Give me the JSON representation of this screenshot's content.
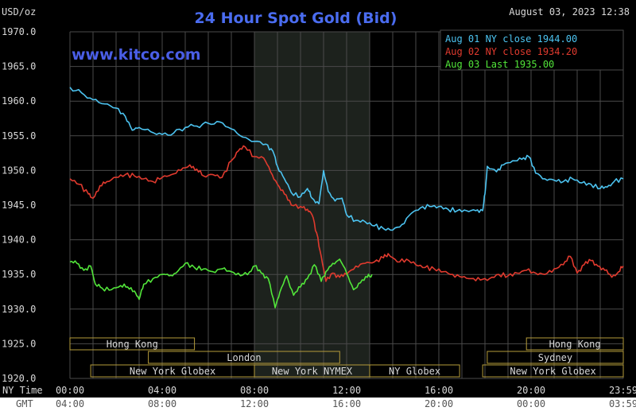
{
  "colors": {
    "background": "#000000",
    "grid": "#4a4a4a",
    "night_band": "#1d221d",
    "aug01": "#4cc3f0",
    "aug02": "#e03a2e",
    "aug03": "#52e63a",
    "title": "#4a6cf0",
    "watermark": "#4a5ee6",
    "session_box": "#b59b3a",
    "session_text": "#d8d8d8"
  },
  "header": {
    "unit": "USD/oz",
    "title": "24 Hour Spot Gold (Bid)",
    "datetime": "August 03, 2023 12:38",
    "watermark": "www.kitco.com"
  },
  "legend": {
    "aug01": "Aug 01 NY close 1944.00",
    "aug02": "Aug 02 NY close 1934.20",
    "aug03": "Aug 03 Last 1935.00"
  },
  "axis": {
    "ny_time_label": "NY Time",
    "gmt_label": "GMT"
  },
  "chart_data": {
    "type": "line",
    "title": "24 Hour Spot Gold (Bid)",
    "ylabel": "USD/oz",
    "ylim": [
      1920,
      1970
    ],
    "xlim": [
      0,
      24
    ],
    "grid": true,
    "legend_position": "top-right",
    "y_ticks": [
      "1970.0",
      "1965.0",
      "1960.0",
      "1955.0",
      "1950.0",
      "1945.0",
      "1940.0",
      "1935.0",
      "1930.0",
      "1925.0",
      "1920.0"
    ],
    "x_ticks_ny": [
      {
        "h": 0,
        "label": "00:00"
      },
      {
        "h": 4,
        "label": "04:00"
      },
      {
        "h": 8,
        "label": "08:00"
      },
      {
        "h": 12,
        "label": "12:00"
      },
      {
        "h": 16,
        "label": "16:00"
      },
      {
        "h": 20,
        "label": "20:00"
      },
      {
        "h": 24,
        "label": "23:59"
      }
    ],
    "x_ticks_gmt": [
      {
        "h": 0,
        "label": "04:00"
      },
      {
        "h": 4,
        "label": "08:00"
      },
      {
        "h": 8,
        "label": "12:00"
      },
      {
        "h": 12,
        "label": "16:00"
      },
      {
        "h": 16,
        "label": "20:00"
      },
      {
        "h": 20,
        "label": "00:00"
      },
      {
        "h": 24,
        "label": "03:59"
      }
    ],
    "night_band": [
      8.0,
      13.0
    ],
    "sessions": [
      {
        "label": "Hong Kong",
        "start": 0,
        "end": 5.4,
        "row": 0
      },
      {
        "label": "Hong Kong",
        "start": 19.8,
        "end": 24,
        "row": 0
      },
      {
        "label": "London",
        "start": 3.4,
        "end": 11.7,
        "row": 1
      },
      {
        "label": "Sydney",
        "start": 18.1,
        "end": 24,
        "row": 1
      },
      {
        "label": "New York Globex",
        "start": 0.9,
        "end": 8.0,
        "row": 2
      },
      {
        "label": "New York NYMEX",
        "start": 8.0,
        "end": 13.0,
        "row": 2
      },
      {
        "label": "NY Globex",
        "start": 13.0,
        "end": 16.9,
        "row": 2
      },
      {
        "label": "New York Globex",
        "start": 17.9,
        "end": 24,
        "row": 2
      }
    ],
    "series": [
      {
        "name": "Aug 01 NY close 1944.00",
        "key": "aug01",
        "points": [
          [
            0,
            1962.0
          ],
          [
            0.5,
            1961.2
          ],
          [
            1,
            1960.2
          ],
          [
            1.5,
            1959.6
          ],
          [
            2,
            1959.0
          ],
          [
            2.4,
            1957.8
          ],
          [
            2.7,
            1955.8
          ],
          [
            3,
            1956.2
          ],
          [
            3.5,
            1955.6
          ],
          [
            4,
            1955.2
          ],
          [
            4.5,
            1955.4
          ],
          [
            5,
            1956.2
          ],
          [
            5.5,
            1956.4
          ],
          [
            6,
            1956.8
          ],
          [
            6.5,
            1957.0
          ],
          [
            7,
            1956.0
          ],
          [
            7.5,
            1954.8
          ],
          [
            8,
            1954.2
          ],
          [
            8.5,
            1953.8
          ],
          [
            8.8,
            1952.8
          ],
          [
            9.0,
            1950.6
          ],
          [
            9.3,
            1948.8
          ],
          [
            9.6,
            1946.8
          ],
          [
            10,
            1946.2
          ],
          [
            10.3,
            1947.4
          ],
          [
            10.5,
            1946.0
          ],
          [
            10.8,
            1945.2
          ],
          [
            11.0,
            1950.0
          ],
          [
            11.2,
            1947.0
          ],
          [
            11.5,
            1945.6
          ],
          [
            11.8,
            1946.0
          ],
          [
            12.0,
            1943.6
          ],
          [
            12.4,
            1942.8
          ],
          [
            12.8,
            1942.6
          ],
          [
            13.2,
            1942.0
          ],
          [
            13.6,
            1941.6
          ],
          [
            14,
            1941.4
          ],
          [
            14.4,
            1942.2
          ],
          [
            14.8,
            1943.8
          ],
          [
            15.2,
            1944.6
          ],
          [
            15.6,
            1944.8
          ],
          [
            16,
            1944.8
          ],
          [
            16.4,
            1944.4
          ],
          [
            16.8,
            1944.2
          ],
          [
            17.2,
            1944.2
          ],
          [
            17.6,
            1944.2
          ],
          [
            17.9,
            1944.2
          ],
          [
            18.0,
            1946.6
          ],
          [
            18.1,
            1950.6
          ],
          [
            18.5,
            1949.8
          ],
          [
            18.8,
            1950.8
          ],
          [
            19.2,
            1951.4
          ],
          [
            19.6,
            1951.6
          ],
          [
            19.9,
            1952.0
          ],
          [
            20.2,
            1949.6
          ],
          [
            20.6,
            1948.8
          ],
          [
            21,
            1948.6
          ],
          [
            21.4,
            1948.4
          ],
          [
            21.8,
            1948.8
          ],
          [
            22.2,
            1948.2
          ],
          [
            22.6,
            1948.0
          ],
          [
            23,
            1947.4
          ],
          [
            23.3,
            1947.6
          ],
          [
            23.6,
            1948.4
          ],
          [
            24,
            1948.8
          ]
        ]
      },
      {
        "name": "Aug 02 NY close 1934.20",
        "key": "aug02",
        "points": [
          [
            0,
            1948.8
          ],
          [
            0.4,
            1948.0
          ],
          [
            0.8,
            1946.6
          ],
          [
            1.0,
            1946.0
          ],
          [
            1.3,
            1947.8
          ],
          [
            1.6,
            1948.4
          ],
          [
            2,
            1949.0
          ],
          [
            2.4,
            1949.4
          ],
          [
            2.8,
            1949.2
          ],
          [
            3.2,
            1948.8
          ],
          [
            3.6,
            1948.4
          ],
          [
            4,
            1949.0
          ],
          [
            4.4,
            1949.4
          ],
          [
            4.8,
            1950.0
          ],
          [
            5.2,
            1950.8
          ],
          [
            5.5,
            1950.2
          ],
          [
            5.8,
            1949.2
          ],
          [
            6.2,
            1949.4
          ],
          [
            6.6,
            1949.0
          ],
          [
            7,
            1951.4
          ],
          [
            7.3,
            1952.8
          ],
          [
            7.6,
            1953.4
          ],
          [
            8,
            1952.0
          ],
          [
            8.4,
            1951.8
          ],
          [
            8.7,
            1949.8
          ],
          [
            9.0,
            1948.0
          ],
          [
            9.3,
            1946.6
          ],
          [
            9.6,
            1945.0
          ],
          [
            10,
            1944.8
          ],
          [
            10.3,
            1944.4
          ],
          [
            10.5,
            1943.6
          ],
          [
            10.7,
            1941.0
          ],
          [
            10.9,
            1937.6
          ],
          [
            11.1,
            1934.0
          ],
          [
            11.4,
            1935.2
          ],
          [
            11.7,
            1934.6
          ],
          [
            12.0,
            1935.0
          ],
          [
            12.4,
            1936.2
          ],
          [
            12.8,
            1936.6
          ],
          [
            13.2,
            1936.8
          ],
          [
            13.6,
            1937.4
          ],
          [
            13.8,
            1938.0
          ],
          [
            14.2,
            1936.8
          ],
          [
            14.6,
            1937.2
          ],
          [
            15,
            1936.4
          ],
          [
            15.4,
            1936.0
          ],
          [
            15.8,
            1935.8
          ],
          [
            16.2,
            1935.4
          ],
          [
            16.6,
            1935.0
          ],
          [
            17,
            1934.6
          ],
          [
            17.4,
            1934.4
          ],
          [
            17.8,
            1934.2
          ],
          [
            18.2,
            1934.4
          ],
          [
            18.6,
            1935.0
          ],
          [
            19,
            1934.8
          ],
          [
            19.4,
            1935.2
          ],
          [
            19.8,
            1935.6
          ],
          [
            20.2,
            1935.2
          ],
          [
            20.6,
            1935.0
          ],
          [
            21,
            1935.8
          ],
          [
            21.4,
            1936.4
          ],
          [
            21.7,
            1937.6
          ],
          [
            22,
            1935.2
          ],
          [
            22.3,
            1936.4
          ],
          [
            22.6,
            1937.0
          ],
          [
            22.9,
            1936.2
          ],
          [
            23.2,
            1935.6
          ],
          [
            23.5,
            1934.6
          ],
          [
            23.8,
            1935.4
          ],
          [
            24,
            1936.2
          ]
        ]
      },
      {
        "name": "Aug 03 Last 1935.00",
        "key": "aug03",
        "points": [
          [
            0,
            1936.8
          ],
          [
            0.3,
            1936.6
          ],
          [
            0.6,
            1935.6
          ],
          [
            0.9,
            1936.2
          ],
          [
            1.1,
            1933.6
          ],
          [
            1.4,
            1933.0
          ],
          [
            1.8,
            1932.8
          ],
          [
            2.2,
            1933.4
          ],
          [
            2.5,
            1933.2
          ],
          [
            2.8,
            1932.6
          ],
          [
            3.0,
            1931.4
          ],
          [
            3.2,
            1933.6
          ],
          [
            3.6,
            1934.4
          ],
          [
            4,
            1935.0
          ],
          [
            4.3,
            1934.8
          ],
          [
            4.6,
            1935.2
          ],
          [
            5.0,
            1936.6
          ],
          [
            5.4,
            1936.0
          ],
          [
            5.8,
            1935.8
          ],
          [
            6.2,
            1935.4
          ],
          [
            6.6,
            1935.8
          ],
          [
            7,
            1935.4
          ],
          [
            7.4,
            1934.8
          ],
          [
            7.8,
            1935.4
          ],
          [
            8,
            1936.2
          ],
          [
            8.3,
            1935.2
          ],
          [
            8.6,
            1934.4
          ],
          [
            8.9,
            1930.2
          ],
          [
            9.1,
            1932.4
          ],
          [
            9.4,
            1934.8
          ],
          [
            9.7,
            1932.0
          ],
          [
            10,
            1933.2
          ],
          [
            10.3,
            1934.4
          ],
          [
            10.6,
            1936.4
          ],
          [
            10.9,
            1934.0
          ],
          [
            11.1,
            1935.4
          ],
          [
            11.4,
            1936.6
          ],
          [
            11.7,
            1937.2
          ],
          [
            12.0,
            1935.2
          ],
          [
            12.3,
            1932.8
          ],
          [
            12.6,
            1933.8
          ],
          [
            12.9,
            1934.6
          ],
          [
            13.1,
            1935.0
          ]
        ]
      }
    ]
  }
}
